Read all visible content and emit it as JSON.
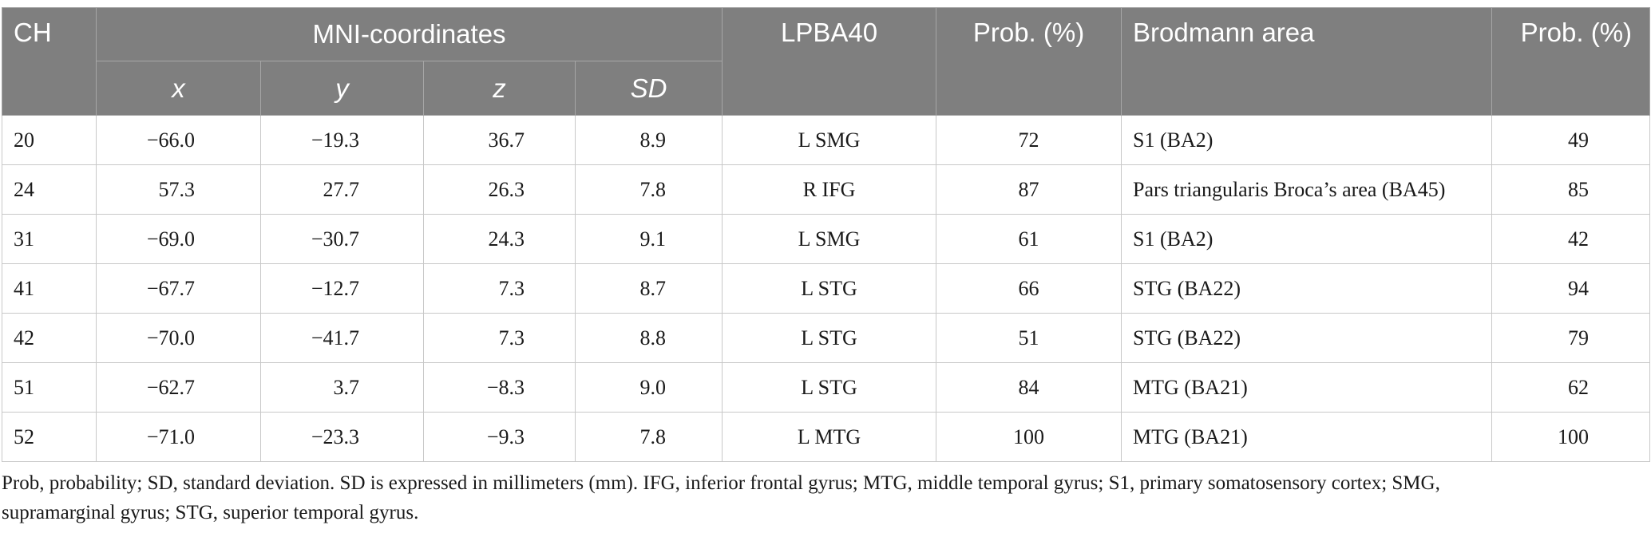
{
  "header": {
    "ch": "CH",
    "mni": "MNI-coordinates",
    "x": "x",
    "y": "y",
    "z": "z",
    "sd": "SD",
    "lpba": "LPBA40",
    "prob1": "Prob. (%)",
    "brodmann": "Brodmann area",
    "prob2": "Prob. (%)"
  },
  "rows": [
    {
      "ch": "20",
      "x": "−66.0",
      "y": "−19.3",
      "z": "36.7",
      "sd": "8.9",
      "lpba": "L SMG",
      "prob1": "72",
      "ba": "S1 (BA2)",
      "prob2": "49"
    },
    {
      "ch": "24",
      "x": "57.3",
      "y": "27.7",
      "z": "26.3",
      "sd": "7.8",
      "lpba": "R IFG",
      "prob1": "87",
      "ba": "Pars triangularis Broca’s area (BA45)",
      "prob2": "85"
    },
    {
      "ch": "31",
      "x": "−69.0",
      "y": "−30.7",
      "z": "24.3",
      "sd": "9.1",
      "lpba": "L SMG",
      "prob1": "61",
      "ba": "S1 (BA2)",
      "prob2": "42"
    },
    {
      "ch": "41",
      "x": "−67.7",
      "y": "−12.7",
      "z": "7.3",
      "sd": "8.7",
      "lpba": "L STG",
      "prob1": "66",
      "ba": "STG (BA22)",
      "prob2": "94"
    },
    {
      "ch": "42",
      "x": "−70.0",
      "y": "−41.7",
      "z": "7.3",
      "sd": "8.8",
      "lpba": "L STG",
      "prob1": "51",
      "ba": "STG (BA22)",
      "prob2": "79"
    },
    {
      "ch": "51",
      "x": "−62.7",
      "y": "3.7",
      "z": "−8.3",
      "sd": "9.0",
      "lpba": "L STG",
      "prob1": "84",
      "ba": "MTG (BA21)",
      "prob2": "62"
    },
    {
      "ch": "52",
      "x": "−71.0",
      "y": "−23.3",
      "z": "−9.3",
      "sd": "7.8",
      "lpba": "L MTG",
      "prob1": "100",
      "ba": "MTG (BA21)",
      "prob2": "100"
    }
  ],
  "footnote": {
    "line1": "Prob, probability; SD, standard deviation. SD is expressed in millimeters (mm). IFG, inferior frontal gyrus; MTG, middle temporal gyrus; S1, primary somatosensory cortex; SMG,",
    "line2": "supramarginal gyrus; STG, superior temporal gyrus."
  },
  "colors": {
    "header_bg": "#7f7f7f",
    "header_text": "#ffffff",
    "grid": "#c8c8c8"
  }
}
